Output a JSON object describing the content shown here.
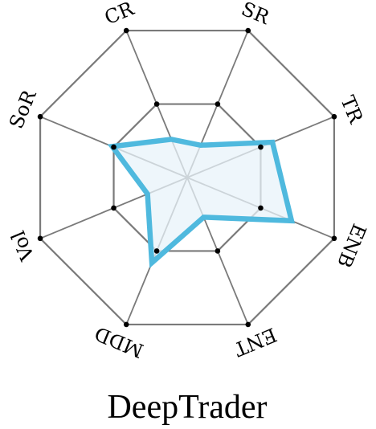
{
  "chart_data": {
    "type": "radar",
    "title": "DeepTrader",
    "axes": [
      "CR",
      "SR",
      "TR",
      "ENB",
      "ENT",
      "MDD",
      "Vol",
      "SoR"
    ],
    "levels": [
      0.5,
      1.0
    ],
    "series": [
      {
        "values": [
          0.26,
          0.22,
          0.58,
          0.71,
          0.27,
          0.58,
          0.27,
          0.51
        ],
        "color": "#4fb9de",
        "fill": "#e8f3fa"
      }
    ],
    "grid_color": "#7a7a7a",
    "range": [
      0,
      1
    ]
  }
}
